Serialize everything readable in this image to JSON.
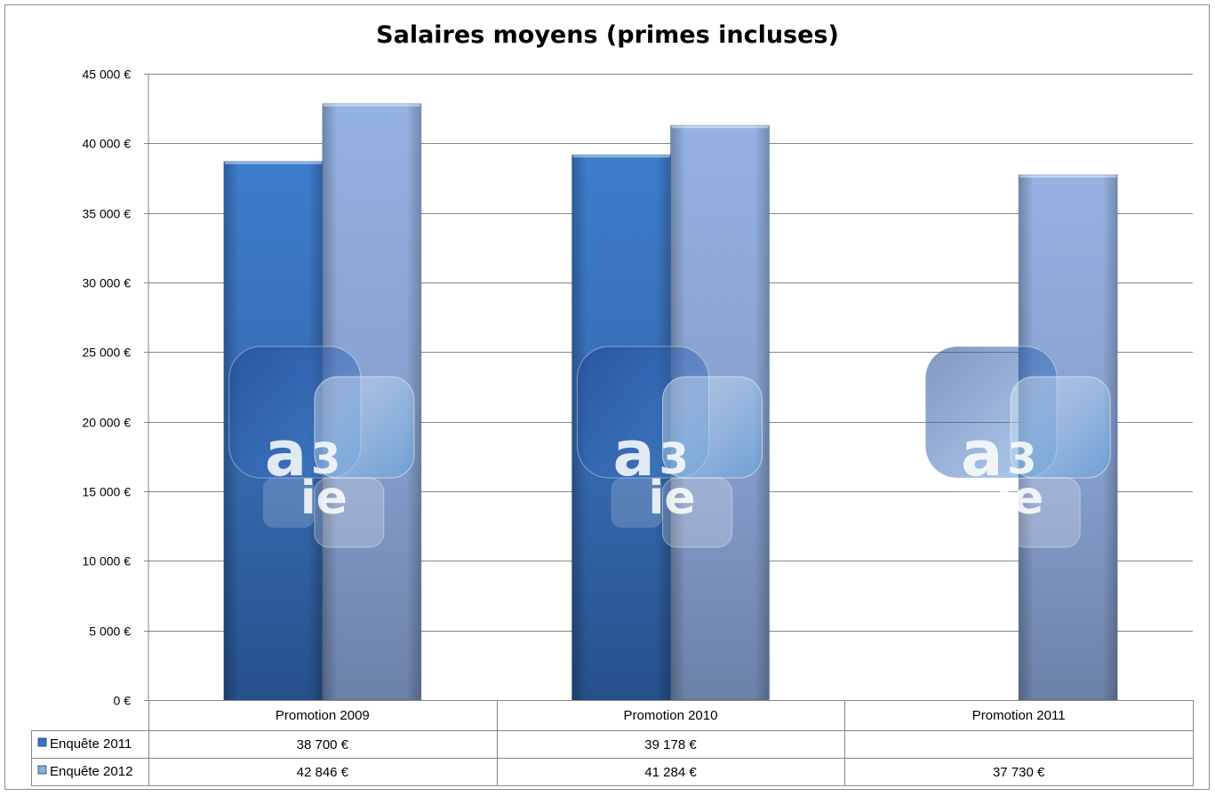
{
  "chart_data": {
    "type": "bar",
    "title": "Salaires moyens (primes incluses)",
    "categories": [
      "Promotion 2009",
      "Promotion 2010",
      "Promotion 2011"
    ],
    "series": [
      {
        "name": "Enquête 2011",
        "values": [
          38700,
          39178,
          null
        ],
        "labels": [
          "38 700 €",
          "39 178 €",
          ""
        ],
        "color": "#3a74c0"
      },
      {
        "name": "Enquête 2012",
        "values": [
          42846,
          41284,
          37730
        ],
        "labels": [
          "42 846 €",
          "41 284 €",
          "37 730 €"
        ],
        "color": "#8eacdc"
      }
    ],
    "ylim": [
      0,
      45000
    ],
    "yticks": [
      0,
      5000,
      10000,
      15000,
      20000,
      25000,
      30000,
      35000,
      40000,
      45000
    ],
    "ytick_labels": [
      "0 €",
      "5 000 €",
      "10 000 €",
      "15 000 €",
      "20 000 €",
      "25 000 €",
      "30 000 €",
      "35 000 €",
      "40 000 €",
      "45 000 €"
    ],
    "grid": true,
    "legend": "data-table",
    "watermark_text": "a3ie"
  }
}
